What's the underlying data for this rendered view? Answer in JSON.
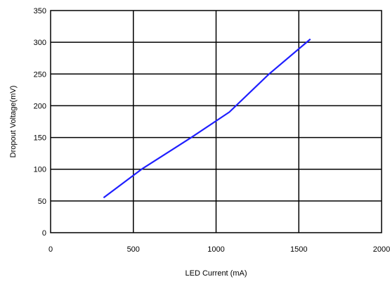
{
  "chart_data": {
    "type": "line",
    "title": "",
    "xlabel": "LED Current (mA)",
    "ylabel": "Dropout Voltage(mV)",
    "xlim": [
      0,
      2000
    ],
    "ylim": [
      0,
      350
    ],
    "xticks": [
      "0",
      "500",
      "1000",
      "1500",
      "2000"
    ],
    "yticks": [
      "0",
      "50",
      "100",
      "150",
      "200",
      "250",
      "300",
      "350"
    ],
    "grid": true,
    "legend": "none",
    "series": [
      {
        "color": "#1f1fff",
        "x": [
          320,
          550,
          850,
          1080,
          1320,
          1570
        ],
        "y": [
          55,
          100,
          150,
          190,
          250,
          305
        ]
      }
    ]
  }
}
